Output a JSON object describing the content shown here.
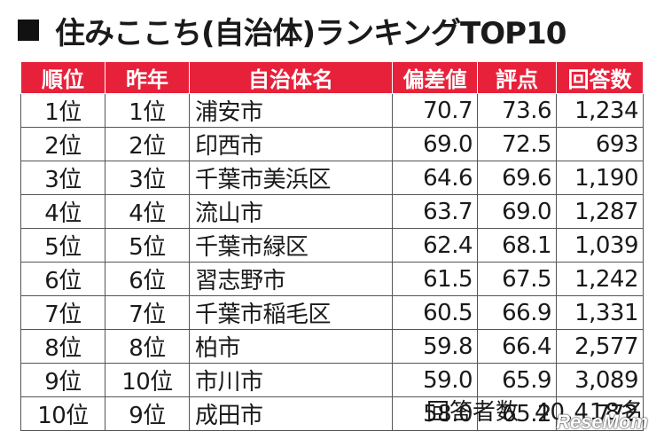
{
  "title": "住みここち(自治体)ランキングTOP10",
  "table": {
    "headers": [
      "順位",
      "昨年",
      "自治体名",
      "偏差値",
      "評点",
      "回答数"
    ],
    "rows": [
      {
        "rank": "1位",
        "last_year": "1位",
        "municipality": "浦安市",
        "deviation": "70.7",
        "score": "73.6",
        "responses": "1,234"
      },
      {
        "rank": "2位",
        "last_year": "2位",
        "municipality": "印西市",
        "deviation": "69.0",
        "score": "72.5",
        "responses": "693"
      },
      {
        "rank": "3位",
        "last_year": "3位",
        "municipality": "千葉市美浜区",
        "deviation": "64.6",
        "score": "69.6",
        "responses": "1,190"
      },
      {
        "rank": "4位",
        "last_year": "4位",
        "municipality": "流山市",
        "deviation": "63.7",
        "score": "69.0",
        "responses": "1,287"
      },
      {
        "rank": "5位",
        "last_year": "5位",
        "municipality": "千葉市緑区",
        "deviation": "62.4",
        "score": "68.1",
        "responses": "1,039"
      },
      {
        "rank": "6位",
        "last_year": "6位",
        "municipality": "習志野市",
        "deviation": "61.5",
        "score": "67.5",
        "responses": "1,242"
      },
      {
        "rank": "7位",
        "last_year": "7位",
        "municipality": "千葉市稲毛区",
        "deviation": "60.5",
        "score": "66.9",
        "responses": "1,331"
      },
      {
        "rank": "8位",
        "last_year": "8位",
        "municipality": "柏市",
        "deviation": "59.8",
        "score": "66.4",
        "responses": "2,577"
      },
      {
        "rank": "9位",
        "last_year": "10位",
        "municipality": "市川市",
        "deviation": "59.0",
        "score": "65.9",
        "responses": "3,089"
      },
      {
        "rank": "10位",
        "last_year": "9位",
        "municipality": "成田市",
        "deviation": "58.0",
        "score": "65.2",
        "responses": "772"
      }
    ]
  },
  "footer": {
    "label": "回答者数",
    "count": "40,418名"
  },
  "watermark": "ReseMom",
  "colors": {
    "header_bg": "#e8213a",
    "header_text": "#ffffff"
  }
}
